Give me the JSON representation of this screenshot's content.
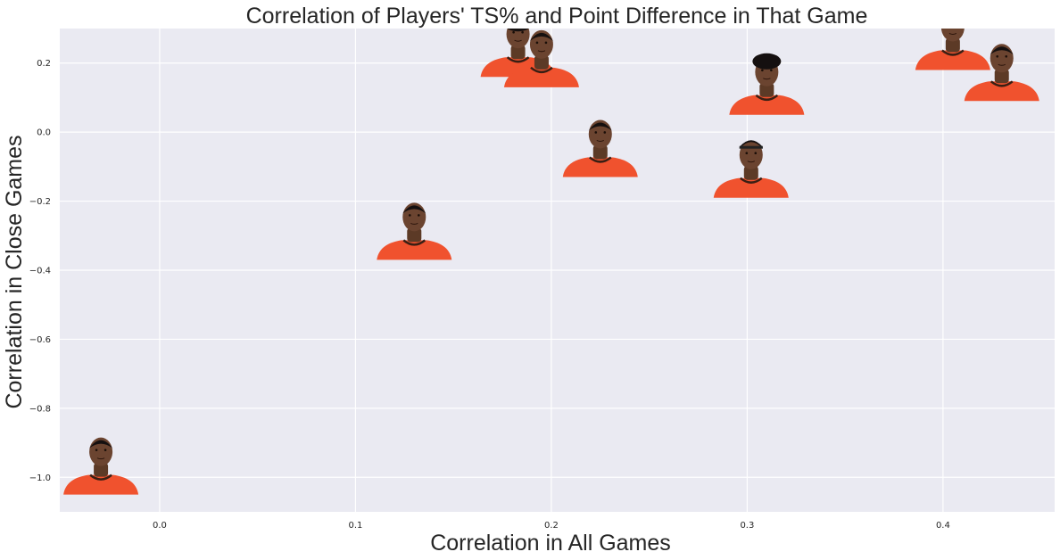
{
  "chart_data": {
    "type": "scatter",
    "title": "Correlation of Players' TS% and Point Difference in That Game",
    "xlabel": "Correlation in All Games",
    "ylabel": "Correlation in Close Games",
    "xlim": [
      -0.051,
      0.457
    ],
    "ylim": [
      -1.1,
      0.3
    ],
    "xticks": [
      0.0,
      0.1,
      0.2,
      0.3,
      0.4
    ],
    "xtick_labels": [
      "0.0",
      "0.1",
      "0.2",
      "0.3",
      "0.4"
    ],
    "yticks": [
      0.2,
      0.0,
      -0.2,
      -0.4,
      -0.6,
      -0.8,
      -1.0
    ],
    "ytick_labels": [
      "0.2",
      "0.0",
      "−0.2",
      "−0.4",
      "−0.6",
      "−0.8",
      "−1.0"
    ],
    "grid": true,
    "background_color": "#eaeaf2",
    "marker_style": "player-headshot",
    "jersey_color": "#f0522e",
    "points": [
      {
        "x": -0.03,
        "y": -1.05,
        "hair": "short"
      },
      {
        "x": 0.13,
        "y": -0.37,
        "hair": "short"
      },
      {
        "x": 0.183,
        "y": 0.16,
        "hair": "curly"
      },
      {
        "x": 0.195,
        "y": 0.13,
        "hair": "short"
      },
      {
        "x": 0.225,
        "y": -0.13,
        "hair": "short"
      },
      {
        "x": 0.302,
        "y": -0.19,
        "hair": "headband"
      },
      {
        "x": 0.31,
        "y": 0.05,
        "hair": "dreads"
      },
      {
        "x": 0.405,
        "y": 0.18,
        "hair": "curly"
      },
      {
        "x": 0.43,
        "y": 0.09,
        "hair": "short"
      }
    ]
  }
}
